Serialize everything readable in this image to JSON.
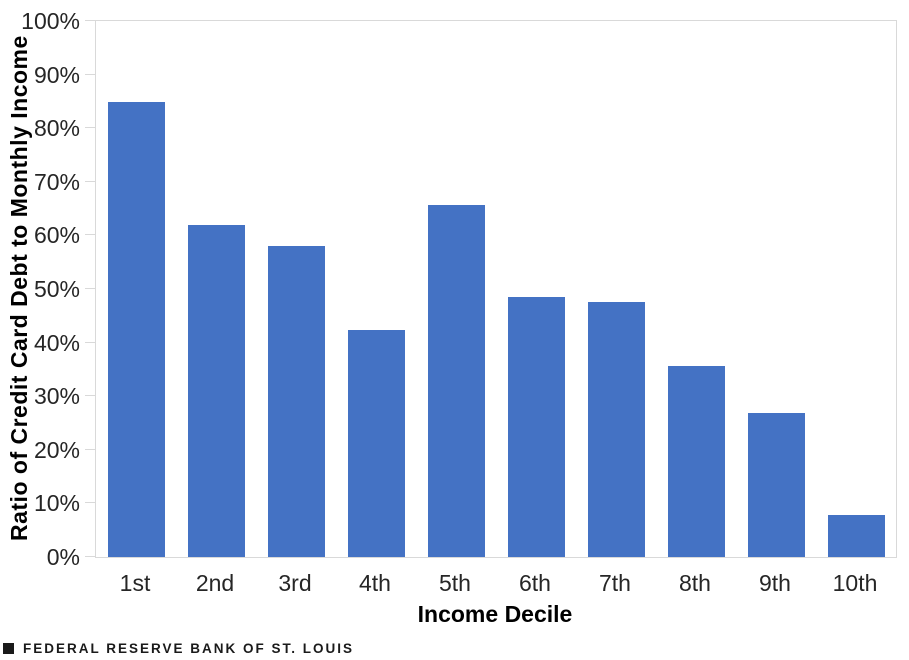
{
  "chart_data": {
    "type": "bar",
    "categories": [
      "1st",
      "2nd",
      "3rd",
      "4th",
      "5th",
      "6th",
      "7th",
      "8th",
      "9th",
      "10th"
    ],
    "values": [
      84.8,
      62.0,
      58.0,
      42.3,
      65.6,
      48.5,
      47.6,
      35.7,
      26.9,
      7.8
    ],
    "title": "",
    "xlabel": "Income Decile",
    "ylabel": "Ratio of Credit Card Debt to Monthly Income",
    "ylim": [
      0,
      100
    ],
    "ytick_labels": [
      "0%",
      "10%",
      "20%",
      "30%",
      "40%",
      "50%",
      "60%",
      "70%",
      "80%",
      "90%",
      "100%"
    ],
    "grid": "top-gridline-only",
    "legend": "none",
    "bar_color": "#4472C4",
    "axis_color": "#D9D9D9",
    "tick_label_color": "#262626",
    "axis_title_color": "#000000"
  },
  "footer": {
    "source_label": "FEDERAL RESERVE BANK OF ST. LOUIS",
    "square_icon_color": "#1A1A1A"
  }
}
